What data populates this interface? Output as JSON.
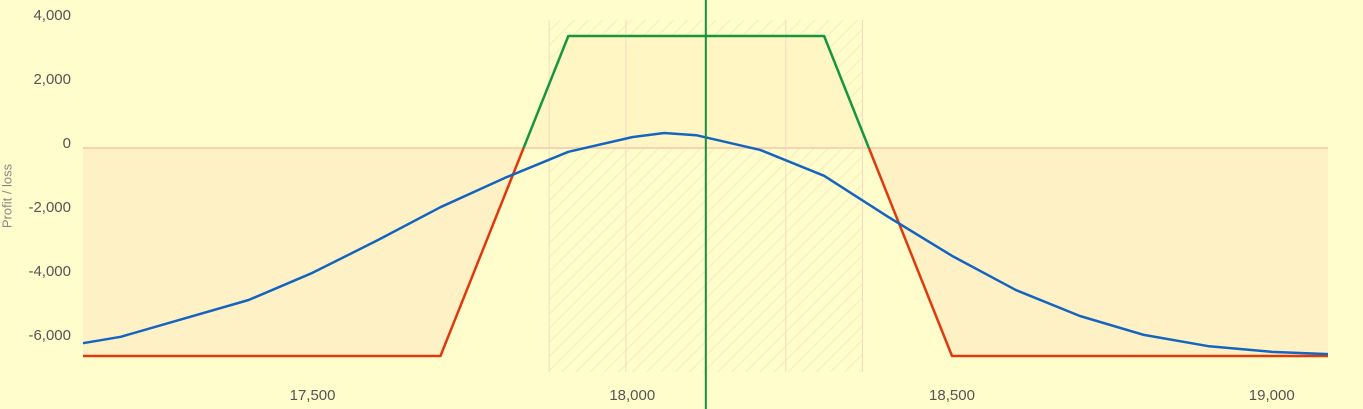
{
  "chart_data": {
    "type": "line",
    "y_label": "Profit / loss",
    "xlim": [
      17141,
      19088
    ],
    "ylim": [
      -7000,
      4625
    ],
    "xticks": [
      {
        "value": 17500,
        "label": "17,500"
      },
      {
        "value": 18000,
        "label": "18,000"
      },
      {
        "value": 18500,
        "label": "18,500"
      },
      {
        "value": 19000,
        "label": "19,000"
      }
    ],
    "yticks": [
      {
        "value": 4000,
        "label": "4,000"
      },
      {
        "value": 2000,
        "label": "2,000"
      },
      0,
      {
        "value": -2000,
        "label": "-2,000"
      },
      {
        "value": -4000,
        "label": "-4,000"
      },
      {
        "value": -6000,
        "label": "-6,000"
      }
    ],
    "current_price": 18115,
    "current_price_color": "#15903f",
    "deviation_lines": [
      17870,
      17990,
      18240,
      18360
    ],
    "series": [
      {
        "color": "#e0390b",
        "fill": "#fff1c6",
        "x": [
          17141,
          17700,
          17830,
          17900,
          18300,
          18370,
          18500,
          19088
        ],
        "values": [
          -6500,
          -6500,
          0,
          null,
          null,
          0,
          -6500,
          -6500
        ]
      },
      {
        "color": "#15963f",
        "fill": "#fff6c4",
        "x": [
          17141,
          17700,
          17830,
          17900,
          18300,
          18370,
          18500,
          19088
        ],
        "values": [
          null,
          null,
          0,
          3500,
          3500,
          0,
          null,
          null
        ]
      },
      {
        "color": "#1565c0",
        "x": [
          17141,
          17200,
          17400,
          17500,
          17600,
          17700,
          17800,
          17900,
          18000,
          18050,
          18100,
          18200,
          18300,
          18400,
          18500,
          18600,
          18700,
          18800,
          18900,
          19000,
          19088
        ],
        "values": [
          -6100,
          -5900,
          -4750,
          -3900,
          -2900,
          -1850,
          -940,
          -120,
          340,
          470,
          400,
          -60,
          -870,
          -2150,
          -3370,
          -4440,
          -5250,
          -5840,
          -6190,
          -6370,
          -6440
        ]
      }
    ]
  }
}
